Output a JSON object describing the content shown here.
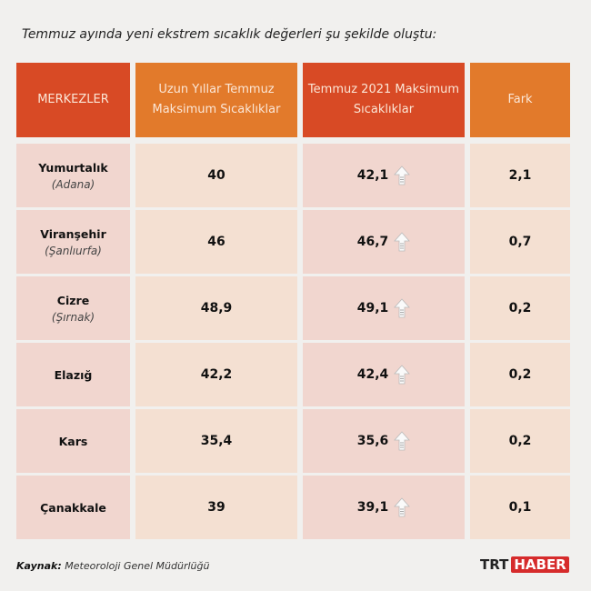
{
  "title": "Temmuz ayında yeni ekstrem sıcaklık değerleri şu şekilde oluştu:",
  "headers": [
    "MERKEZLER",
    "Uzun Yıllar Temmuz Maksimum Sıcaklıklar",
    "Temmuz 2021 Maksimum Sıcaklıklar",
    "Fark"
  ],
  "rows": [
    {
      "station": "Yumurtalık",
      "province": "(Adana)",
      "long_term": "40",
      "july_2021": "42,1",
      "diff": "2,1"
    },
    {
      "station": "Viranşehir",
      "province": "(Şanlıurfa)",
      "long_term": "46",
      "july_2021": "46,7",
      "diff": "0,7"
    },
    {
      "station": "Cizre",
      "province": "(Şırnak)",
      "long_term": "48,9",
      "july_2021": "49,1",
      "diff": "0,2"
    },
    {
      "station": "Elazığ",
      "province": "",
      "long_term": "42,2",
      "july_2021": "42,4",
      "diff": "0,2"
    },
    {
      "station": "Kars",
      "province": "",
      "long_term": "35,4",
      "july_2021": "35,6",
      "diff": "0,2"
    },
    {
      "station": "Çanakkale",
      "province": "",
      "long_term": "39",
      "july_2021": "39,1",
      "diff": "0,1"
    }
  ],
  "footer": {
    "source_label": "Kaynak:",
    "source": "Meteoroloji Genel Müdürlüğü"
  },
  "logo": {
    "part1": "TRT",
    "part2": "HABER"
  },
  "colors": {
    "header_red": "#d84a25",
    "header_orange": "#e27a2b",
    "cell_pink": "#f1d6cf",
    "cell_peach": "#f4e0d2"
  },
  "icons": {
    "increase": "up-arrow-icon"
  }
}
